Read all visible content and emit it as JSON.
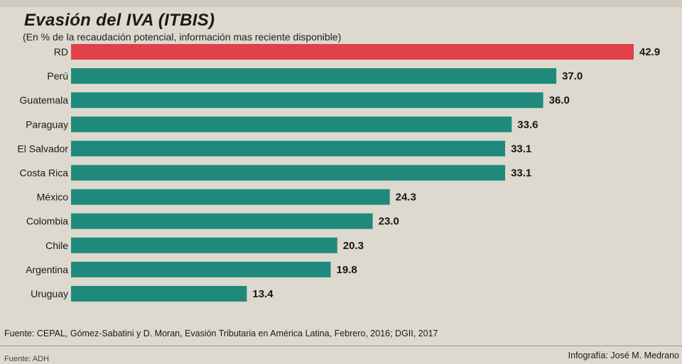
{
  "header": {
    "title": "Evasión del IVA (ITBIS)",
    "subtitle": "(En % de la recaudación potencial, información mas reciente disponible)"
  },
  "colors": {
    "highlight": "#e0414a",
    "bars": "#1f8a7b",
    "background": "#ddd9cf"
  },
  "chart_data": {
    "type": "bar",
    "orientation": "horizontal",
    "title": "Evasión del IVA (ITBIS)",
    "subtitle": "(En % de la recaudación potencial, información mas reciente disponible)",
    "xlabel": "",
    "ylabel": "",
    "unit": "%",
    "xlim": [
      0,
      42.9
    ],
    "grid": false,
    "legend": "none",
    "highlight_category": "RD",
    "categories": [
      "RD",
      "Perú",
      "Guatemala",
      "Paraguay",
      "El Salvador",
      "Costa Rica",
      "México",
      "Colombia",
      "Chile",
      "Argentina",
      "Uruguay"
    ],
    "values": [
      42.9,
      37.0,
      36.0,
      33.6,
      33.1,
      33.1,
      24.3,
      23.0,
      20.3,
      19.8,
      13.4
    ],
    "value_labels": [
      "42.9",
      "37.0",
      "36.0",
      "33.6",
      "33.1",
      "33.1",
      "24.3",
      "23.0",
      "20.3",
      "19.8",
      "13.4"
    ]
  },
  "footer": {
    "source": "Fuente: CEPAL, Gómez-Sabatini y D. Moran, Evasión Tributaria en  América Latina, Febrero, 2016; DGII, 2017",
    "credit": "Infografía: José M. Medrano",
    "bottom_left": "Fuente: ADH"
  }
}
